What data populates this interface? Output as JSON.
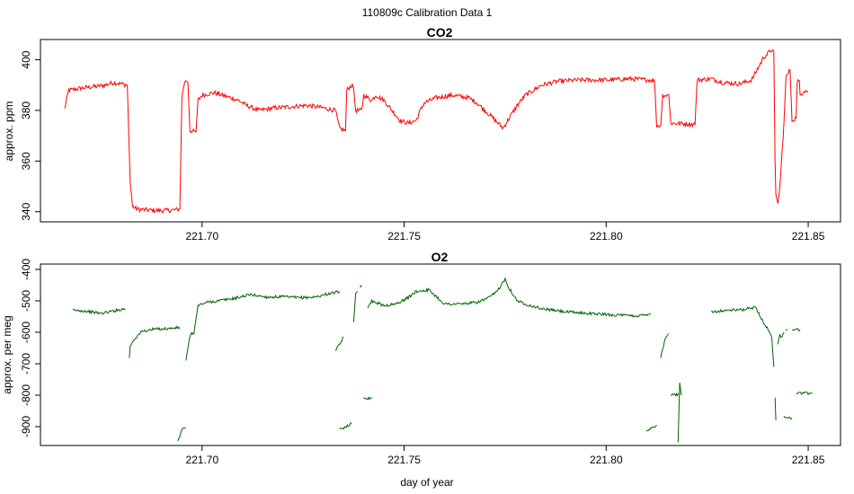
{
  "figure": {
    "title": "110809c   Calibration Data 1",
    "xlabel": "day of year"
  },
  "chart_data": [
    {
      "type": "line",
      "title": "CO2",
      "ylabel": "approx. ppm",
      "xlabel": "",
      "xlim": [
        221.66,
        221.858
      ],
      "ylim": [
        336,
        408
      ],
      "xticks": [
        "221.70",
        "221.75",
        "221.80",
        "221.85"
      ],
      "yticks": [
        "340",
        "360",
        "380",
        "400"
      ],
      "color": "#ff0000",
      "series": [
        {
          "segments": [
            [
              [
                221.666,
                380.5
              ],
              [
                221.6663,
                383
              ],
              [
                221.667,
                388
              ],
              [
                221.671,
                389
              ],
              [
                221.674,
                389.5
              ],
              [
                221.676,
                390
              ],
              [
                221.678,
                391
              ],
              [
                221.68,
                390.5
              ],
              [
                221.6815,
                390
              ],
              [
                221.6822,
                352
              ],
              [
                221.6828,
                342
              ],
              [
                221.684,
                341
              ],
              [
                221.688,
                340.5
              ],
              [
                221.692,
                340.5
              ],
              [
                221.6945,
                341
              ],
              [
                221.695,
                385
              ],
              [
                221.6955,
                390
              ],
              [
                221.696,
                392
              ],
              [
                221.6965,
                391
              ],
              [
                221.697,
                372
              ],
              [
                221.6985,
                371.5
              ],
              [
                221.699,
                384
              ],
              [
                221.7,
                386
              ],
              [
                221.703,
                387
              ],
              [
                221.706,
                385.5
              ],
              [
                221.709,
                384
              ],
              [
                221.711,
                382
              ],
              [
                221.714,
                380
              ],
              [
                221.718,
                381
              ],
              [
                221.722,
                381.5
              ],
              [
                221.726,
                382
              ],
              [
                221.73,
                381
              ],
              [
                221.733,
                380
              ],
              [
                221.734,
                373
              ],
              [
                221.7355,
                372
              ],
              [
                221.7358,
                388
              ],
              [
                221.737,
                390
              ],
              [
                221.7375,
                389
              ],
              [
                221.738,
                380
              ],
              [
                221.7395,
                380
              ],
              [
                221.74,
                386
              ],
              [
                221.741,
                385
              ],
              [
                221.742,
                384
              ],
              [
                221.743,
                386
              ],
              [
                221.745,
                384
              ],
              [
                221.747,
                380
              ],
              [
                221.749,
                376
              ],
              [
                221.751,
                375
              ],
              [
                221.753,
                376
              ],
              [
                221.754,
                380
              ],
              [
                221.755,
                383
              ],
              [
                221.758,
                385
              ],
              [
                221.762,
                386
              ],
              [
                221.766,
                385
              ],
              [
                221.768,
                383
              ],
              [
                221.77,
                380
              ],
              [
                221.772,
                377
              ],
              [
                221.7745,
                373
              ],
              [
                221.776,
                377
              ],
              [
                221.778,
                382
              ],
              [
                221.78,
                386
              ],
              [
                221.782,
                388
              ],
              [
                221.784,
                390
              ],
              [
                221.788,
                391.5
              ],
              [
                221.793,
                392
              ],
              [
                221.8,
                392
              ],
              [
                221.806,
                392.5
              ],
              [
                221.811,
                392
              ],
              [
                221.812,
                391.5
              ],
              [
                221.8125,
                374
              ],
              [
                221.8135,
                374
              ],
              [
                221.814,
                386
              ],
              [
                221.8155,
                386
              ],
              [
                221.816,
                375
              ],
              [
                221.822,
                374.5
              ],
              [
                221.8225,
                392
              ],
              [
                221.826,
                392.5
              ],
              [
                221.829,
                391
              ],
              [
                221.833,
                390.5
              ],
              [
                221.836,
                392
              ],
              [
                221.838,
                398
              ],
              [
                221.839,
                401
              ],
              [
                221.841,
                404
              ],
              [
                221.8415,
                403
              ],
              [
                221.8418,
                360
              ],
              [
                221.842,
                346
              ],
              [
                221.8425,
                343
              ],
              [
                221.843,
                350
              ],
              [
                221.844,
                375
              ],
              [
                221.8445,
                393
              ],
              [
                221.8455,
                396
              ],
              [
                221.846,
                376
              ],
              [
                221.847,
                377
              ],
              [
                221.8473,
                392
              ],
              [
                221.8478,
                391
              ],
              [
                221.848,
                386
              ],
              [
                221.849,
                388
              ],
              [
                221.85,
                387.5
              ]
            ]
          ]
        }
      ]
    },
    {
      "type": "line",
      "title": "O2",
      "ylabel": "approx. per meg",
      "xlabel": "day of year",
      "xlim": [
        221.66,
        221.858
      ],
      "ylim": [
        -960,
        -383
      ],
      "xticks": [
        "221.70",
        "221.75",
        "221.80",
        "221.85"
      ],
      "yticks": [
        "-400",
        "-500",
        "-600",
        "-700",
        "-800",
        "-900"
      ],
      "color": "#006400",
      "series": [
        {
          "segments": [
            [
              [
                221.668,
                -530
              ],
              [
                221.671,
                -532
              ],
              [
                221.675,
                -540
              ],
              [
                221.678,
                -532
              ],
              [
                221.681,
                -525
              ]
            ],
            [
              [
                221.682,
                -680
              ],
              [
                221.6822,
                -645
              ],
              [
                221.683,
                -625
              ],
              [
                221.685,
                -598
              ],
              [
                221.688,
                -590
              ],
              [
                221.692,
                -588
              ],
              [
                221.6945,
                -585
              ]
            ],
            [
              [
                221.694,
                -948
              ],
              [
                221.695,
                -910
              ],
              [
                221.696,
                -905
              ]
            ],
            [
              [
                221.696,
                -690
              ],
              [
                221.6965,
                -650
              ],
              [
                221.697,
                -610
              ],
              [
                221.698,
                -600
              ],
              [
                221.699,
                -515
              ],
              [
                221.701,
                -505
              ],
              [
                221.704,
                -500
              ],
              [
                221.708,
                -492
              ],
              [
                221.712,
                -480
              ],
              [
                221.716,
                -488
              ],
              [
                221.72,
                -487
              ],
              [
                221.724,
                -490
              ],
              [
                221.728,
                -488
              ],
              [
                221.731,
                -478
              ],
              [
                221.734,
                -470
              ]
            ],
            [
              [
                221.733,
                -660
              ],
              [
                221.734,
                -640
              ],
              [
                221.735,
                -615
              ]
            ],
            [
              [
                221.734,
                -910
              ],
              [
                221.7355,
                -900
              ],
              [
                221.737,
                -890
              ]
            ],
            [
              [
                221.7375,
                -568
              ],
              [
                221.738,
                -480
              ],
              [
                221.7385,
                -470
              ]
            ],
            [
              [
                221.739,
                -455
              ],
              [
                221.7395,
                -450
              ]
            ],
            [
              [
                221.74,
                -808
              ],
              [
                221.742,
                -810
              ]
            ],
            [
              [
                221.741,
                -520
              ],
              [
                221.742,
                -500
              ],
              [
                221.745,
                -515
              ],
              [
                221.748,
                -510
              ],
              [
                221.751,
                -490
              ],
              [
                221.753,
                -470
              ],
              [
                221.756,
                -465
              ],
              [
                221.757,
                -475
              ],
              [
                221.76,
                -510
              ],
              [
                221.764,
                -510
              ],
              [
                221.768,
                -505
              ],
              [
                221.771,
                -490
              ],
              [
                221.773,
                -470
              ],
              [
                221.775,
                -430
              ],
              [
                221.776,
                -460
              ],
              [
                221.778,
                -500
              ],
              [
                221.78,
                -510
              ],
              [
                221.784,
                -525
              ],
              [
                221.79,
                -535
              ],
              [
                221.796,
                -540
              ],
              [
                221.802,
                -545
              ],
              [
                221.808,
                -548
              ],
              [
                221.811,
                -540
              ]
            ],
            [
              [
                221.81,
                -915
              ],
              [
                221.811,
                -905
              ],
              [
                221.8125,
                -895
              ]
            ],
            [
              [
                221.8135,
                -680
              ],
              [
                221.8145,
                -625
              ],
              [
                221.8155,
                -605
              ]
            ],
            [
              [
                221.816,
                -797
              ],
              [
                221.817,
                -800
              ],
              [
                221.818,
                -795
              ]
            ],
            [
              [
                221.8178,
                -950
              ],
              [
                221.8182,
                -760
              ],
              [
                221.8186,
                -800
              ]
            ],
            [
              [
                221.826,
                -535
              ],
              [
                221.83,
                -530
              ],
              [
                221.834,
                -528
              ],
              [
                221.837,
                -520
              ],
              [
                221.838,
                -545
              ],
              [
                221.839,
                -570
              ],
              [
                221.8405,
                -600
              ],
              [
                221.841,
                -620
              ],
              [
                221.8415,
                -710
              ]
            ],
            [
              [
                221.8418,
                -808
              ],
              [
                221.842,
                -880
              ]
            ],
            [
              [
                221.8425,
                -640
              ],
              [
                221.843,
                -605
              ],
              [
                221.8435,
                -615
              ],
              [
                221.844,
                -600
              ]
            ],
            [
              [
                221.844,
                -870
              ],
              [
                221.846,
                -872
              ]
            ],
            [
              [
                221.8445,
                -595
              ],
              [
                221.8448,
                -590
              ]
            ],
            [
              [
                221.846,
                -590
              ],
              [
                221.848,
                -592
              ]
            ],
            [
              [
                221.847,
                -795
              ],
              [
                221.849,
                -792
              ],
              [
                221.851,
                -795
              ]
            ]
          ]
        }
      ]
    }
  ]
}
